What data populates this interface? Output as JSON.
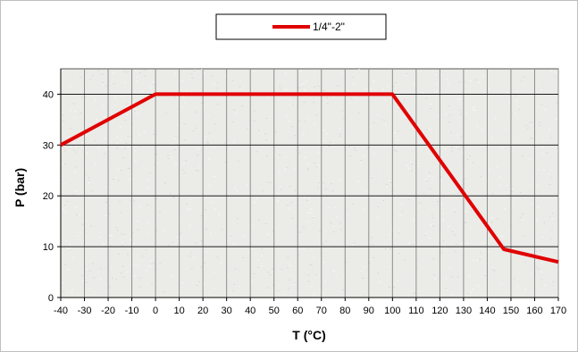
{
  "chart_data": {
    "type": "line",
    "title": "",
    "xlabel": "T (°C)",
    "ylabel": "P (bar)",
    "xlim": [
      -40,
      170
    ],
    "ylim": [
      0,
      45
    ],
    "xticks": [
      -40,
      -30,
      -20,
      -10,
      0,
      10,
      20,
      30,
      40,
      50,
      60,
      70,
      80,
      90,
      100,
      110,
      120,
      130,
      140,
      150,
      160,
      170
    ],
    "yticks": [
      0,
      10,
      20,
      30,
      40
    ],
    "grid": true,
    "legend_position": "top-center",
    "series": [
      {
        "name": "1/4\"-2\"",
        "color": "#e00000",
        "x": [
          -40,
          0,
          100,
          147,
          170
        ],
        "y": [
          30,
          40,
          40,
          9.5,
          7
        ]
      }
    ]
  }
}
